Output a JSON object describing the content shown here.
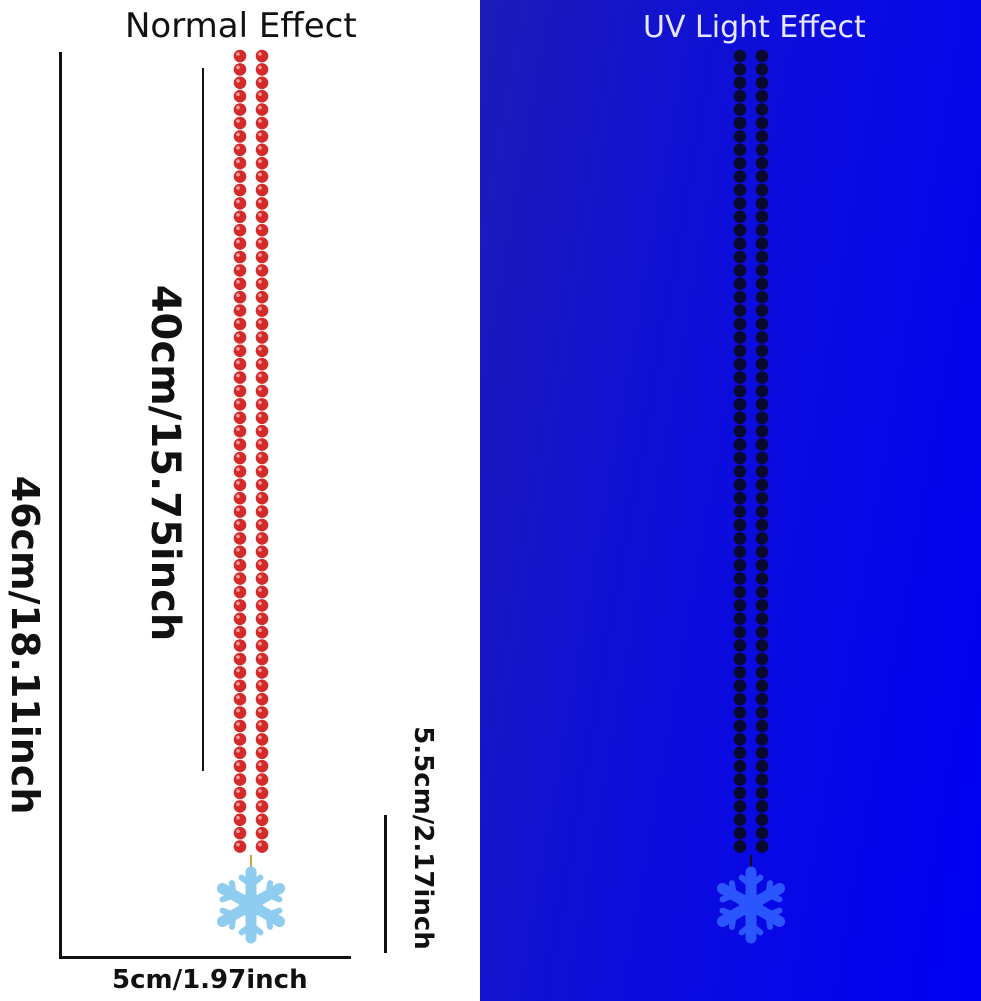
{
  "panels": {
    "normal": {
      "title": "Normal Effect"
    },
    "uv": {
      "title": "UV Light Effect"
    }
  },
  "dimensions": {
    "chain_length": "40cm/15.75inch",
    "total_length": "46cm/18.11inch",
    "pendant_height": "5.5cm/2.17inch",
    "pendant_width": "5cm/1.97inch"
  },
  "colors": {
    "bead_normal": "#d42a2a",
    "bead_uv": "#0a0a30",
    "pendant_normal": "#8fcdf0",
    "pendant_uv": "#2a55ff"
  }
}
